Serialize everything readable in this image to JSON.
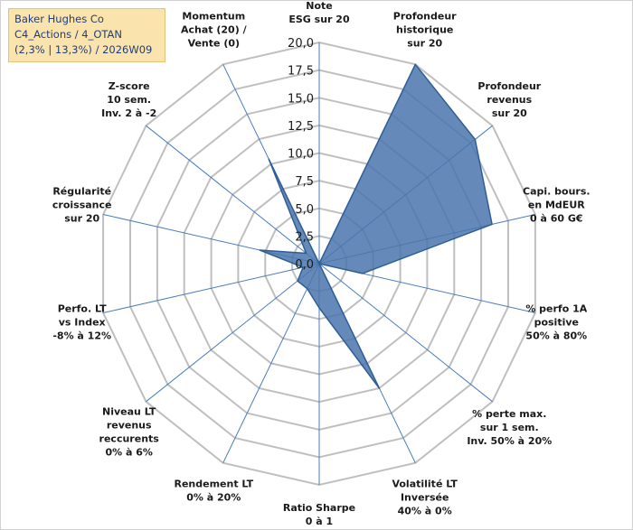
{
  "colors": {
    "grid": "#bfbfbf",
    "spokes": "#4a7ebb",
    "area_fill": "#4a76ad",
    "area_stroke": "#2e5e96",
    "label_text": "#1a1a1a",
    "title_bg": "#fbe3ad",
    "title_text": "#1f3f7a"
  },
  "title_box": {
    "line1": "Baker Hughes Co",
    "line2": "C4_Actions / 4_OTAN",
    "line3": "(2,3% | 13,3%) / 2026W09"
  },
  "chart_data": {
    "type": "radar",
    "title": "Baker Hughes Co",
    "rlim": [
      0,
      20
    ],
    "tick_step": 2.5,
    "tick_labels": [
      "0,0",
      "2,5",
      "5,0",
      "7,5",
      "10,0",
      "12,5",
      "15,0",
      "17,5",
      "20,0"
    ],
    "grid": true,
    "legend": "none",
    "axes": [
      [
        "Note",
        "ESG sur 20"
      ],
      [
        "Profondeur",
        "historique",
        "sur 20"
      ],
      [
        "Profondeur",
        "revenus",
        "sur 20"
      ],
      [
        "Capi. bours.",
        "en MdEUR",
        "0 à 60 G€"
      ],
      [
        "% perfo 1A",
        "positive",
        "50% à 80%"
      ],
      [
        "% perte max.",
        "sur 1 sem.",
        "Inv. 50% à 20%"
      ],
      [
        "Volatilité LT",
        "Inversée",
        "40% à 0%"
      ],
      [
        "Ratio Sharpe",
        "0 à 1"
      ],
      [
        "Rendement LT",
        "0% à 20%"
      ],
      [
        "Niveau LT",
        "revenus",
        "reccurents",
        "0% à 6%"
      ],
      [
        "Perfo. LT",
        "vs Index",
        "-8% à 12%"
      ],
      [
        "Régularité",
        "croissance",
        "sur 20"
      ],
      [
        "Z-score",
        "10 sem.",
        "Inv. 2 à -2"
      ],
      [
        "Momentum",
        "Achat (20) /",
        "Vente (0)"
      ]
    ],
    "series": [
      {
        "name": "Baker Hughes Co",
        "values": [
          0,
          20,
          18,
          16,
          4,
          0,
          12.5,
          4,
          2.5,
          2.5,
          1.5,
          5.5,
          1.5,
          10.5
        ]
      }
    ]
  }
}
